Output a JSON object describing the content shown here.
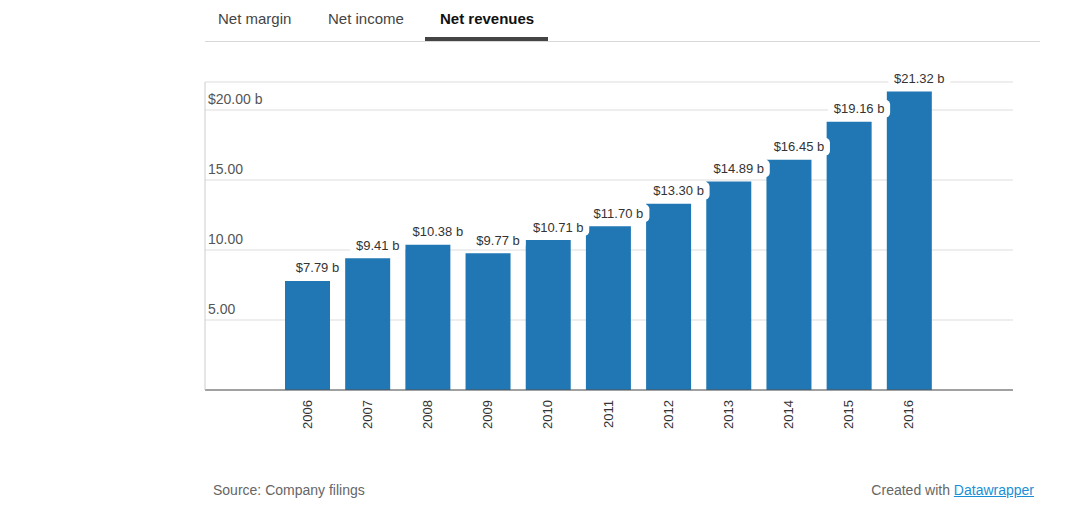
{
  "chart_data": {
    "type": "bar",
    "tabs": [
      "Net margin",
      "Net income",
      "Net revenues"
    ],
    "active_tab": "Net revenues",
    "categories": [
      "2006",
      "2007",
      "2008",
      "2009",
      "2010",
      "2011",
      "2012",
      "2013",
      "2014",
      "2015",
      "2016"
    ],
    "values": [
      7.79,
      9.41,
      10.38,
      9.77,
      10.71,
      11.7,
      13.3,
      14.89,
      16.45,
      19.16,
      21.32
    ],
    "value_labels": [
      "$7.79 b",
      "$9.41 b",
      "$10.38 b",
      "$9.77 b",
      "$10.71 b",
      "$11.70 b",
      "$13.30 b",
      "$14.89 b",
      "$16.45 b",
      "$19.16 b",
      "$21.32 b"
    ],
    "color": "#2077b4",
    "ylim": [
      0,
      22
    ],
    "yticks": [
      {
        "value": 5,
        "label": "5.00"
      },
      {
        "value": 10,
        "label": "10.00"
      },
      {
        "value": 15,
        "label": "15.00"
      },
      {
        "value": 20,
        "label": "$20.00 b"
      }
    ],
    "grid": true,
    "data_labels": true,
    "source": "Source: Company filings",
    "credit_text": "Created with",
    "credit_link": "Datawrapper"
  }
}
